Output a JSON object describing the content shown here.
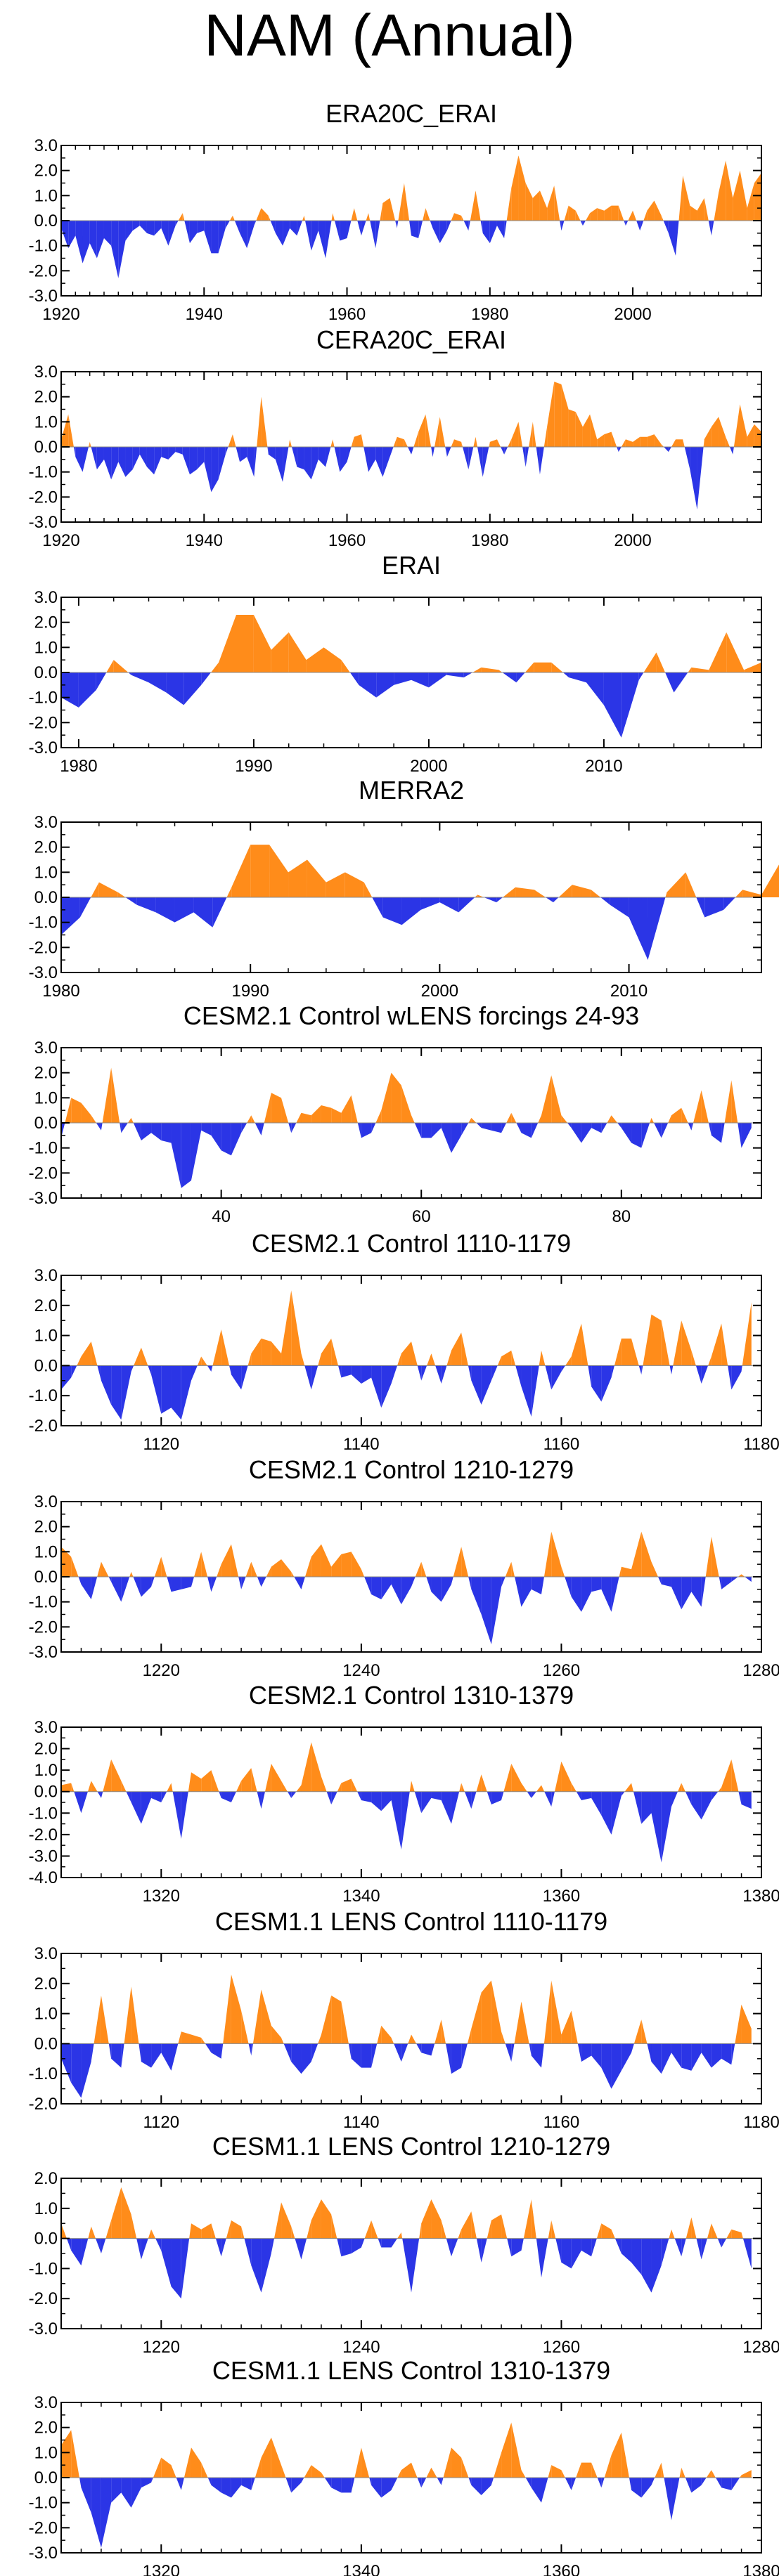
{
  "title": "NAM (Annual)",
  "colors": {
    "positive": "#FF8C1A",
    "negative": "#2B35E6",
    "axis": "#000000"
  },
  "chart_data": [
    {
      "type": "area",
      "title": "ERA20C_ERAI",
      "xlim": [
        1920,
        2018
      ],
      "ylim": [
        -3,
        3
      ],
      "yticks": [
        "3.0",
        "2.0",
        "1.0",
        "0.0",
        "-1.0",
        "-2.0",
        "-3.0"
      ],
      "xticks": [
        "1920",
        "1940",
        "1960",
        "1980",
        "2000"
      ],
      "x_start": 1920,
      "values": [
        -0.3,
        -1.1,
        -0.6,
        -1.7,
        -0.9,
        -1.5,
        -0.7,
        -1.0,
        -2.3,
        -0.8,
        -0.4,
        -0.2,
        -0.5,
        -0.6,
        -0.3,
        -1.0,
        -0.2,
        0.3,
        -0.9,
        -0.5,
        -0.4,
        -1.3,
        -1.3,
        -0.3,
        0.2,
        -0.5,
        -1.1,
        -0.2,
        0.5,
        0.2,
        -0.5,
        -1.0,
        -0.3,
        -0.6,
        0.2,
        -1.2,
        -0.4,
        -1.5,
        0.3,
        -0.8,
        -0.7,
        0.5,
        -0.6,
        0.3,
        -1.1,
        0.7,
        0.9,
        -0.3,
        1.5,
        -0.6,
        -0.7,
        0.5,
        -0.3,
        -0.9,
        -0.4,
        0.3,
        0.2,
        -0.4,
        1.2,
        -0.5,
        -0.9,
        -0.2,
        -0.7,
        1.3,
        2.6,
        1.5,
        0.9,
        1.2,
        0.5,
        1.4,
        -0.4,
        0.6,
        0.4,
        -0.2,
        0.3,
        0.5,
        0.4,
        0.6,
        0.6,
        -0.2,
        0.4,
        -0.4,
        0.4,
        0.8,
        0.2,
        -0.5,
        -1.4,
        1.8,
        0.6,
        0.4,
        0.9,
        -0.6,
        1.1,
        2.4,
        0.9,
        2.0,
        0.5,
        1.5,
        1.9
      ]
    },
    {
      "type": "area",
      "title": "CERA20C_ERAI",
      "xlim": [
        1920,
        2018
      ],
      "ylim": [
        -3,
        3
      ],
      "yticks": [
        "3.0",
        "2.0",
        "1.0",
        "0.0",
        "-1.0",
        "-2.0",
        "-3.0"
      ],
      "xticks": [
        "1920",
        "1940",
        "1960",
        "1980",
        "2000"
      ],
      "x_start": 1920,
      "values": [
        0.3,
        1.3,
        -0.4,
        -1.0,
        0.2,
        -0.9,
        -0.5,
        -1.3,
        -0.6,
        -1.2,
        -0.9,
        -0.3,
        -0.8,
        -1.1,
        -0.4,
        -0.5,
        -0.2,
        -0.3,
        -1.1,
        -0.9,
        -0.6,
        -1.8,
        -1.3,
        -0.3,
        0.5,
        -0.6,
        -0.4,
        -1.2,
        2.0,
        -0.3,
        -0.5,
        -1.4,
        0.3,
        -0.8,
        -0.9,
        -1.3,
        -0.5,
        -0.8,
        0.3,
        -1.0,
        -0.6,
        0.4,
        0.5,
        -1.0,
        -0.5,
        -1.2,
        -0.4,
        0.4,
        0.3,
        -0.3,
        0.6,
        1.3,
        -0.4,
        1.2,
        -0.4,
        0.3,
        0.2,
        -0.9,
        0.4,
        -1.2,
        0.2,
        0.3,
        -0.3,
        0.3,
        1.0,
        -0.8,
        1.0,
        -1.1,
        0.8,
        2.6,
        2.5,
        1.5,
        1.4,
        0.8,
        1.3,
        0.3,
        0.5,
        0.6,
        -0.2,
        0.3,
        0.2,
        0.4,
        0.4,
        0.5,
        0.1,
        -0.2,
        0.3,
        0.3,
        -0.9,
        -2.5,
        0.3,
        0.8,
        1.2,
        0.4,
        -0.3,
        1.7,
        0.4,
        0.9,
        0.6
      ]
    },
    {
      "type": "area",
      "title": "ERAI",
      "xlim": [
        1979,
        2019
      ],
      "ylim": [
        -3,
        3
      ],
      "yticks": [
        "3.0",
        "2.0",
        "1.0",
        "0.0",
        "-1.0",
        "-2.0",
        "-3.0"
      ],
      "xticks": [
        "1980",
        "1990",
        "2000",
        "2010"
      ],
      "x_start": 1979,
      "values": [
        -1.0,
        -1.4,
        -0.7,
        0.5,
        -0.1,
        -0.4,
        -0.8,
        -1.3,
        -0.5,
        0.4,
        2.3,
        2.3,
        0.9,
        1.6,
        0.5,
        1.0,
        0.5,
        -0.5,
        -1.0,
        -0.5,
        -0.3,
        -0.6,
        -0.1,
        -0.2,
        0.2,
        0.1,
        -0.4,
        0.4,
        0.4,
        -0.2,
        -0.4,
        -1.3,
        -2.6,
        -0.3,
        0.8,
        -0.8,
        0.2,
        0.1,
        1.6,
        0.1,
        0.4
      ]
    },
    {
      "type": "area",
      "title": "MERRA2",
      "xlim": [
        1980,
        2017
      ],
      "ylim": [
        -3,
        3
      ],
      "yticks": [
        "3.0",
        "2.0",
        "1.0",
        "0.0",
        "-1.0",
        "-2.0",
        "-3.0"
      ],
      "xticks": [
        "1980",
        "1990",
        "2000",
        "2010"
      ],
      "x_start": 1980,
      "values": [
        -1.5,
        -0.8,
        0.6,
        0.2,
        -0.3,
        -0.6,
        -1.0,
        -0.6,
        -1.2,
        0.4,
        2.1,
        2.1,
        1.0,
        1.5,
        0.6,
        1.0,
        0.6,
        -0.8,
        -1.1,
        -0.5,
        -0.2,
        -0.6,
        0.1,
        -0.2,
        0.4,
        0.3,
        -0.2,
        0.5,
        0.3,
        -0.3,
        -0.8,
        -2.5,
        0.2,
        1.0,
        -0.8,
        -0.5,
        0.3,
        0.1,
        1.4,
        0.1
      ]
    },
    {
      "type": "area",
      "title": "CESM2.1 Control wLENS forcings 24-93",
      "xlim": [
        24,
        94
      ],
      "ylim": [
        -3,
        3
      ],
      "yticks": [
        "3.0",
        "2.0",
        "1.0",
        "0.0",
        "-1.0",
        "-2.0",
        "-3.0"
      ],
      "xticks": [
        "40",
        "60",
        "80"
      ],
      "x_start": 24,
      "values": [
        -0.6,
        1.0,
        0.8,
        0.3,
        -0.3,
        2.2,
        -0.4,
        0.2,
        -0.7,
        -0.4,
        -0.7,
        -0.8,
        -2.6,
        -2.3,
        -0.3,
        -0.5,
        -1.1,
        -1.3,
        -0.4,
        0.3,
        -0.5,
        1.2,
        1.0,
        -0.4,
        0.4,
        0.3,
        0.7,
        0.6,
        0.4,
        1.1,
        -0.6,
        -0.4,
        0.5,
        2.0,
        1.5,
        0.3,
        -0.6,
        -0.6,
        -0.2,
        -1.2,
        -0.5,
        0.2,
        -0.2,
        -0.3,
        -0.4,
        0.4,
        -0.4,
        -0.6,
        0.3,
        1.9,
        0.3,
        -0.2,
        -0.8,
        -0.2,
        -0.4,
        0.3,
        -0.2,
        -0.8,
        -1.0,
        0.2,
        -0.6,
        0.3,
        0.6,
        -0.3,
        1.3,
        -0.5,
        -0.8,
        1.7,
        -1.0,
        -0.2
      ]
    },
    {
      "type": "area",
      "title": "CESM2.1 Control 1110-1179",
      "xlim": [
        1110,
        1180
      ],
      "ylim": [
        -2,
        3
      ],
      "yticks": [
        "3.0",
        "2.0",
        "1.0",
        "0.0",
        "-1.0",
        "-2.0"
      ],
      "xticks": [
        "1120",
        "1140",
        "1160",
        "1180"
      ],
      "x_start": 1110,
      "values": [
        -0.8,
        -0.4,
        0.3,
        0.8,
        -0.5,
        -1.3,
        -1.8,
        -0.2,
        0.6,
        -0.3,
        -1.6,
        -1.4,
        -1.8,
        -0.5,
        0.3,
        -0.2,
        1.2,
        -0.3,
        -0.8,
        0.4,
        0.9,
        0.8,
        0.4,
        2.5,
        0.4,
        -0.8,
        0.4,
        0.9,
        -0.4,
        -0.3,
        -0.6,
        -0.4,
        -1.4,
        -0.6,
        0.4,
        0.8,
        -0.5,
        0.4,
        -0.6,
        0.5,
        1.1,
        -0.5,
        -1.3,
        -0.5,
        0.3,
        0.5,
        -0.7,
        -1.7,
        0.5,
        -0.8,
        -0.2,
        0.3,
        1.4,
        -0.7,
        -1.2,
        -0.4,
        0.9,
        0.9,
        -0.3,
        1.7,
        1.5,
        -0.3,
        1.5,
        0.5,
        -0.6,
        0.3,
        1.4,
        -0.8,
        -0.2,
        2.1
      ]
    },
    {
      "type": "area",
      "title": "CESM2.1 Control 1210-1279",
      "xlim": [
        1210,
        1280
      ],
      "ylim": [
        -3,
        3
      ],
      "yticks": [
        "3.0",
        "2.0",
        "1.0",
        "0.0",
        "-1.0",
        "-2.0",
        "-3.0"
      ],
      "xticks": [
        "1220",
        "1240",
        "1260",
        "1280"
      ],
      "x_start": 1210,
      "values": [
        1.2,
        0.8,
        -0.3,
        -0.9,
        0.6,
        -0.2,
        -1.0,
        0.2,
        -0.8,
        -0.4,
        0.8,
        -0.6,
        -0.5,
        -0.4,
        1.0,
        -0.6,
        0.5,
        1.3,
        -0.5,
        0.6,
        -0.4,
        0.4,
        0.7,
        0.2,
        -0.5,
        0.8,
        1.3,
        0.4,
        0.9,
        1.0,
        0.3,
        -0.7,
        -0.9,
        -0.3,
        -1.1,
        -0.4,
        0.6,
        -0.6,
        -1.0,
        -0.3,
        1.2,
        -0.5,
        -1.5,
        -2.7,
        -0.4,
        0.6,
        -1.2,
        -0.5,
        -0.7,
        1.8,
        0.4,
        -0.8,
        -1.4,
        -0.6,
        -0.5,
        -1.4,
        0.4,
        0.3,
        1.8,
        0.6,
        -0.3,
        -0.4,
        -1.3,
        -0.6,
        -1.2,
        1.6,
        -0.5,
        -0.2,
        0.1,
        -0.2
      ]
    },
    {
      "type": "area",
      "title": "CESM2.1 Control 1310-1379",
      "xlim": [
        1310,
        1380
      ],
      "ylim": [
        -4,
        3
      ],
      "yticks": [
        "3.0",
        "2.0",
        "1.0",
        "0.0",
        "-1.0",
        "-2.0",
        "-3.0",
        "-4.0"
      ],
      "xticks": [
        "1320",
        "1340",
        "1360",
        "1380"
      ],
      "x_start": 1310,
      "values": [
        0.3,
        0.4,
        -1.0,
        0.5,
        -0.3,
        1.5,
        0.5,
        -0.5,
        -1.5,
        -0.3,
        -0.5,
        0.4,
        -2.2,
        0.9,
        0.6,
        1.0,
        -0.3,
        -0.5,
        0.5,
        1.1,
        -0.8,
        1.3,
        0.5,
        -0.3,
        0.3,
        2.3,
        0.7,
        -0.6,
        0.4,
        0.6,
        -0.4,
        -0.5,
        -0.9,
        -0.4,
        -2.7,
        0.5,
        -1.0,
        -0.3,
        -0.4,
        -1.5,
        0.4,
        -0.8,
        0.8,
        -0.6,
        -0.4,
        1.3,
        0.4,
        -0.3,
        0.3,
        -0.7,
        1.4,
        0.4,
        -0.4,
        -0.3,
        -1.1,
        -2.0,
        -0.2,
        0.4,
        -1.5,
        -1.0,
        -3.3,
        -0.7,
        0.4,
        -0.6,
        -1.3,
        -0.4,
        0.2,
        1.5,
        -0.6,
        -0.8
      ]
    },
    {
      "type": "area",
      "title": "CESM1.1 LENS Control 1110-1179",
      "xlim": [
        1110,
        1180
      ],
      "ylim": [
        -2,
        3
      ],
      "yticks": [
        "3.0",
        "2.0",
        "1.0",
        "0.0",
        "-1.0",
        "-2.0"
      ],
      "xticks": [
        "1120",
        "1140",
        "1160",
        "1180"
      ],
      "x_start": 1110,
      "values": [
        -0.5,
        -1.3,
        -1.8,
        -0.6,
        1.6,
        -0.5,
        -0.8,
        1.9,
        -0.6,
        -0.8,
        -0.3,
        -0.9,
        0.4,
        0.3,
        0.2,
        -0.3,
        -0.5,
        2.3,
        1.1,
        -0.4,
        1.8,
        0.6,
        0.2,
        -0.6,
        -1.0,
        -0.6,
        0.3,
        1.6,
        1.4,
        -0.5,
        -0.8,
        -0.8,
        0.6,
        0.2,
        -0.6,
        0.3,
        -0.3,
        -0.4,
        0.8,
        -1.0,
        -0.8,
        0.5,
        1.7,
        2.1,
        0.4,
        -0.6,
        1.4,
        -0.4,
        -0.8,
        2.1,
        0.3,
        1.1,
        -0.6,
        -0.4,
        -0.8,
        -1.5,
        -0.9,
        -0.3,
        0.8,
        -0.6,
        -1.0,
        -0.3,
        -0.8,
        -0.9,
        -0.3,
        -0.8,
        -0.5,
        -0.7,
        1.3,
        0.5
      ]
    },
    {
      "type": "area",
      "title": "CESM1.1 LENS Control 1210-1279",
      "xlim": [
        1210,
        1280
      ],
      "ylim": [
        -3,
        2
      ],
      "yticks": [
        "2.0",
        "1.0",
        "0.0",
        "-1.0",
        "-2.0",
        "-3.0"
      ],
      "xticks": [
        "1220",
        "1240",
        "1260",
        "1280"
      ],
      "x_start": 1210,
      "values": [
        0.5,
        -0.4,
        -0.9,
        0.4,
        -0.5,
        0.6,
        1.7,
        0.8,
        -0.7,
        0.3,
        -0.4,
        -1.6,
        -2.0,
        0.5,
        0.3,
        0.5,
        -0.6,
        0.6,
        0.4,
        -0.9,
        -1.8,
        -0.5,
        1.2,
        0.4,
        -0.7,
        0.6,
        1.3,
        0.8,
        -0.6,
        -0.5,
        -0.3,
        0.6,
        -0.3,
        -0.3,
        0.2,
        -1.8,
        0.5,
        1.3,
        0.6,
        -0.6,
        0.3,
        0.9,
        -0.8,
        0.6,
        0.8,
        -0.6,
        -0.4,
        1.3,
        -1.3,
        0.6,
        -0.8,
        -1.0,
        -0.4,
        -0.6,
        0.5,
        0.3,
        -0.5,
        -0.8,
        -1.2,
        -1.8,
        -0.9,
        0.3,
        -0.6,
        0.7,
        -0.7,
        0.5,
        -0.3,
        0.3,
        0.2,
        -1.0
      ]
    },
    {
      "type": "area",
      "title": "CESM1.1 LENS Control 1310-1379",
      "xlim": [
        1310,
        1380
      ],
      "ylim": [
        -3,
        3
      ],
      "yticks": [
        "3.0",
        "2.0",
        "1.0",
        "0.0",
        "-1.0",
        "-2.0",
        "-3.0"
      ],
      "xticks": [
        "1320",
        "1340",
        "1360",
        "1380"
      ],
      "x_start": 1310,
      "values": [
        1.3,
        1.9,
        -0.4,
        -1.4,
        -2.8,
        -1.0,
        -0.6,
        -1.2,
        -0.4,
        -0.2,
        0.8,
        0.5,
        -0.5,
        1.2,
        0.6,
        -0.3,
        -0.6,
        -0.8,
        -0.3,
        -0.5,
        0.8,
        1.6,
        0.5,
        -0.6,
        -0.2,
        0.5,
        0.2,
        -0.4,
        -0.6,
        -0.6,
        1.2,
        -0.3,
        -0.8,
        -0.5,
        0.3,
        0.6,
        -0.4,
        0.4,
        -0.3,
        1.2,
        0.8,
        -0.3,
        -0.7,
        -0.3,
        1.0,
        2.2,
        0.3,
        -0.4,
        -1.0,
        0.5,
        0.3,
        -0.5,
        0.6,
        0.6,
        -0.4,
        0.9,
        1.8,
        -0.5,
        -0.8,
        -0.3,
        0.6,
        -1.7,
        0.4,
        -0.6,
        -0.3,
        0.3,
        -0.4,
        -0.5,
        0.1,
        0.3
      ]
    }
  ]
}
